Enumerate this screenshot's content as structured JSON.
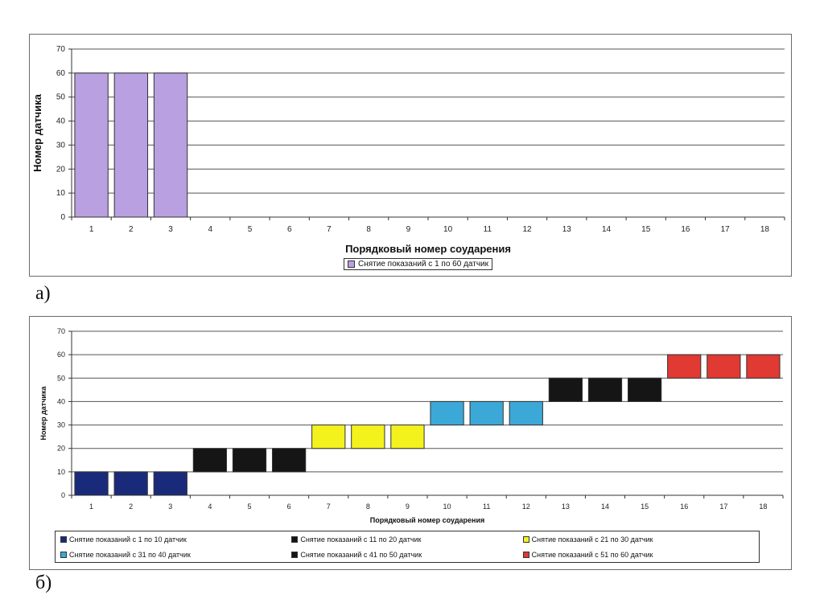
{
  "chart_data": [
    {
      "type": "bar",
      "xlabel": "Порядковый номер соударения",
      "ylabel": "Номер датчика",
      "ylim": [
        0,
        70
      ],
      "yticks": [
        0,
        10,
        20,
        30,
        40,
        50,
        60,
        70
      ],
      "categories": [
        "1",
        "2",
        "3",
        "4",
        "5",
        "6",
        "7",
        "8",
        "9",
        "10",
        "11",
        "12",
        "13",
        "14",
        "15",
        "16",
        "17",
        "18"
      ],
      "grid": true,
      "legend_position": "bottom",
      "series": [
        {
          "name": "Снятие показаний с 1 по 60 датчик",
          "color": "#b9a0e0",
          "x": [
            "1",
            "2",
            "3"
          ],
          "low": [
            0,
            0,
            0
          ],
          "high": [
            60,
            60,
            60
          ]
        }
      ]
    },
    {
      "type": "bar",
      "xlabel": "Порядковый номер соударения",
      "ylabel": "Номер датчика",
      "ylim": [
        0,
        70
      ],
      "yticks": [
        0,
        10,
        20,
        30,
        40,
        50,
        60,
        70
      ],
      "categories": [
        "1",
        "2",
        "3",
        "4",
        "5",
        "6",
        "7",
        "8",
        "9",
        "10",
        "11",
        "12",
        "13",
        "14",
        "15",
        "16",
        "17",
        "18"
      ],
      "grid": true,
      "legend_position": "bottom",
      "series": [
        {
          "name": "Снятие показаний с 1 по 10 датчик",
          "color": "#1a2a7a",
          "x": [
            "1",
            "2",
            "3"
          ],
          "low": [
            0,
            0,
            0
          ],
          "high": [
            10,
            10,
            10
          ]
        },
        {
          "name": "Снятие показаний с 11 по 20 датчик",
          "color": "#151515",
          "x": [
            "4",
            "5",
            "6"
          ],
          "low": [
            10,
            10,
            10
          ],
          "high": [
            20,
            20,
            20
          ]
        },
        {
          "name": "Снятие показаний с 21 по 30 датчик",
          "color": "#f4f21c",
          "x": [
            "7",
            "8",
            "9"
          ],
          "low": [
            20,
            20,
            20
          ],
          "high": [
            30,
            30,
            30
          ]
        },
        {
          "name": "Снятие показаний с 31 по 40 датчик",
          "color": "#3ca8d8",
          "x": [
            "10",
            "11",
            "12"
          ],
          "low": [
            30,
            30,
            30
          ],
          "high": [
            40,
            40,
            40
          ]
        },
        {
          "name": "Снятие показаний с 41 по 50 датчик",
          "color": "#151515",
          "x": [
            "13",
            "14",
            "15"
          ],
          "low": [
            40,
            40,
            40
          ],
          "high": [
            50,
            50,
            50
          ]
        },
        {
          "name": "Снятие показаний с 51 по 60 датчик",
          "color": "#e03a33",
          "x": [
            "16",
            "17",
            "18"
          ],
          "low": [
            50,
            50,
            50
          ],
          "high": [
            60,
            60,
            60
          ]
        }
      ]
    }
  ],
  "labels": {
    "a": "а)",
    "b": "б)"
  }
}
